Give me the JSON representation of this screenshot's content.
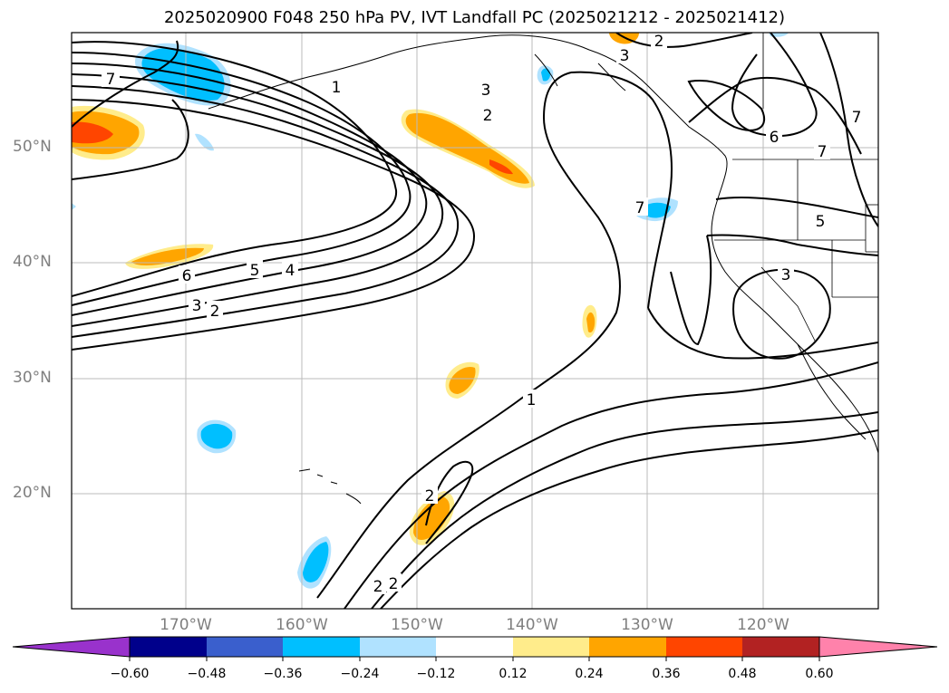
{
  "title": "2025020900 F048 250 hPa PV, IVT Landfall PC (2025021212 - 2025021412)",
  "lat_labels": [
    "50°N",
    "40°N",
    "30°N",
    "20°N"
  ],
  "lon_labels": [
    "170°W",
    "160°W",
    "150°W",
    "140°W",
    "130°W",
    "120°W"
  ],
  "colorbar": {
    "ticks": [
      "−0.60",
      "−0.48",
      "−0.36",
      "−0.24",
      "−0.12",
      "0.12",
      "0.24",
      "0.36",
      "0.48",
      "0.60"
    ],
    "colors": [
      "#9932cc",
      "#00008b",
      "#3a5fcd",
      "#00bfff",
      "#b0e2ff",
      "#ffffff",
      "#ffec8b",
      "#ffa500",
      "#ff4500",
      "#b22222",
      "#ff82ab"
    ]
  },
  "contour_labels": [
    "1",
    "2",
    "3",
    "4",
    "5",
    "6",
    "7"
  ]
}
